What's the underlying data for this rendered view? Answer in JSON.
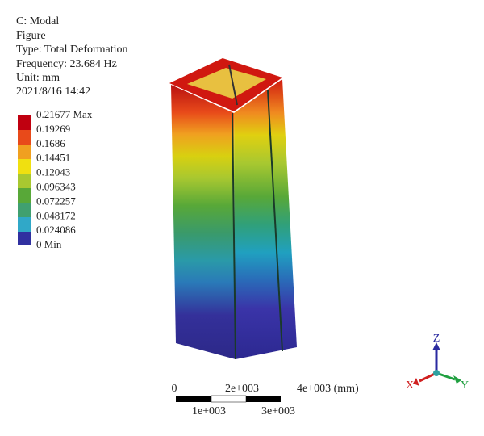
{
  "header": {
    "lines": [
      "C: Modal",
      "Figure",
      "Type: Total Deformation",
      "Frequency: 23.684 Hz",
      "Unit: mm",
      "2021/8/16 14:42"
    ]
  },
  "legend": {
    "labels": [
      "0.21677 Max",
      "0.19269",
      "0.1686",
      "0.14451",
      "0.12043",
      "0.096343",
      "0.072257",
      "0.048172",
      "0.024086",
      "0 Min"
    ]
  },
  "scale": {
    "top": [
      "0",
      "2e+003",
      "4e+003 (mm)"
    ],
    "bottom": [
      "1e+003",
      "3e+003"
    ]
  },
  "triad": {
    "z": "Z",
    "x": "X",
    "y": "Y"
  }
}
